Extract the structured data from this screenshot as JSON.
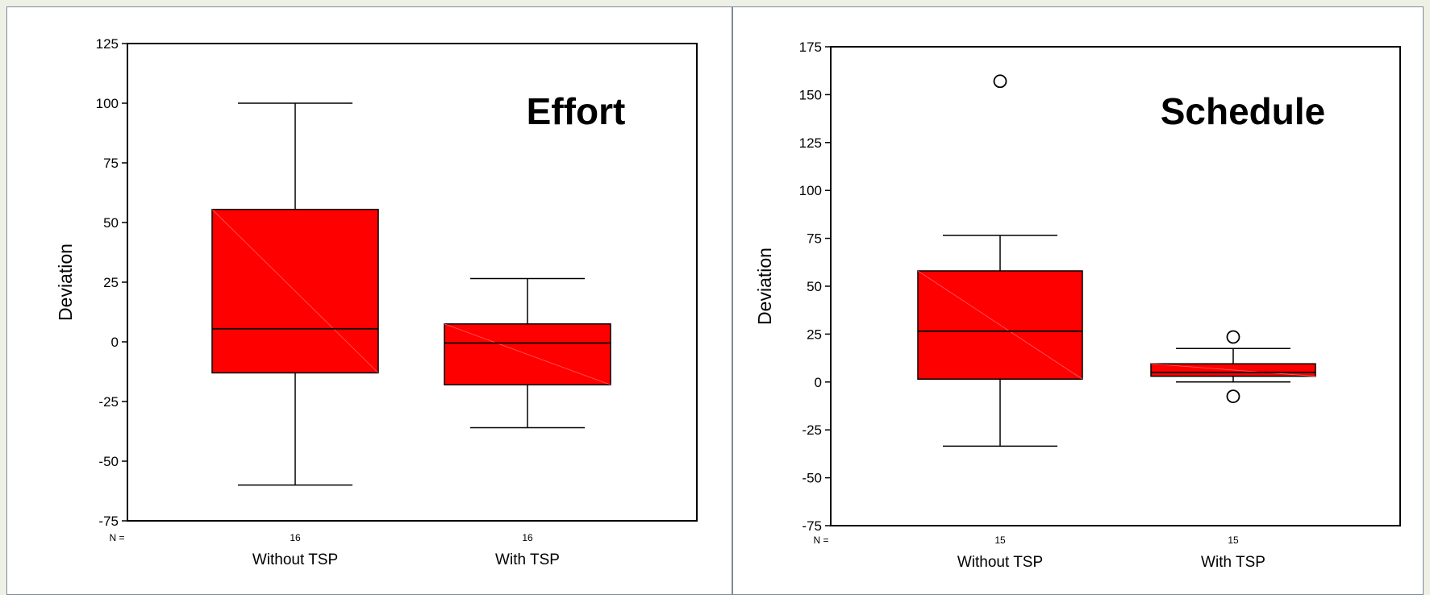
{
  "chart_data": [
    {
      "type": "box",
      "title": "Effort",
      "ylabel": "Deviation",
      "xlabel": "",
      "ylim": [
        -75,
        125
      ],
      "yticks": [
        125,
        100,
        75,
        50,
        25,
        0,
        -25,
        -50,
        -75
      ],
      "n_label": "N =",
      "categories": [
        "Without TSP",
        "With TSP"
      ],
      "n": [
        "16",
        "16"
      ],
      "boxes": [
        {
          "category": "Without TSP",
          "whisker_low": -60,
          "q1": -13,
          "median": 5.5,
          "q3": 55.5,
          "whisker_high": 100,
          "outliers": []
        },
        {
          "category": "With TSP",
          "whisker_low": -36,
          "q1": -18,
          "median": -0.5,
          "q3": 7.5,
          "whisker_high": 26.5,
          "outliers": []
        }
      ],
      "box_color": "#ff0000",
      "grid": false,
      "legend": "none"
    },
    {
      "type": "box",
      "title": "Schedule",
      "ylabel": "Deviation",
      "xlabel": "",
      "ylim": [
        -75,
        175
      ],
      "yticks": [
        175,
        150,
        125,
        100,
        75,
        50,
        25,
        0,
        -25,
        -50,
        -75
      ],
      "n_label": "N =",
      "categories": [
        "Without TSP",
        "With TSP"
      ],
      "n": [
        "15",
        "15"
      ],
      "boxes": [
        {
          "category": "Without TSP",
          "whisker_low": -33.5,
          "q1": 1.5,
          "median": 26.5,
          "q3": 58,
          "whisker_high": 76.5,
          "outliers": [
            157
          ]
        },
        {
          "category": "With TSP",
          "whisker_low": 0,
          "q1": 3,
          "median": 5,
          "q3": 9.5,
          "whisker_high": 17.5,
          "outliers": [
            23.5,
            -7.5
          ]
        }
      ],
      "box_color": "#ff0000",
      "grid": false,
      "legend": "none"
    }
  ]
}
